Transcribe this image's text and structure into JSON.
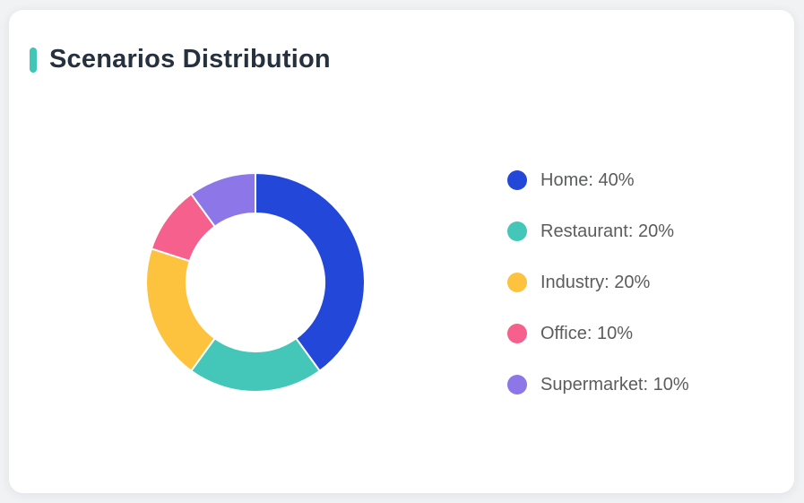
{
  "page": {
    "background_color": "#f1f2f4"
  },
  "card": {
    "title": "Scenarios Distribution",
    "accent_color": "#3fc6b7",
    "title_color": "#26313f"
  },
  "chart_data": {
    "type": "pie",
    "subtype": "donut",
    "title": "Scenarios Distribution",
    "legend_position": "right",
    "start_angle_deg": 0,
    "direction": "clockwise",
    "inner_radius_ratio": 0.63,
    "unit": "%",
    "categories": [
      "Home",
      "Restaurant",
      "Industry",
      "Office",
      "Supermarket"
    ],
    "values": [
      40,
      20,
      20,
      10,
      10
    ],
    "colors": [
      "#2247d9",
      "#44c7b8",
      "#fdc33e",
      "#f6608c",
      "#8d77e8"
    ],
    "legend_labels": [
      "Home: 40%",
      "Restaurant: 20%",
      "Industry: 20%",
      "Office: 10%",
      "Supermarket: 10%"
    ],
    "slice_border_color": "#ffffff",
    "slice_border_width": 2
  }
}
